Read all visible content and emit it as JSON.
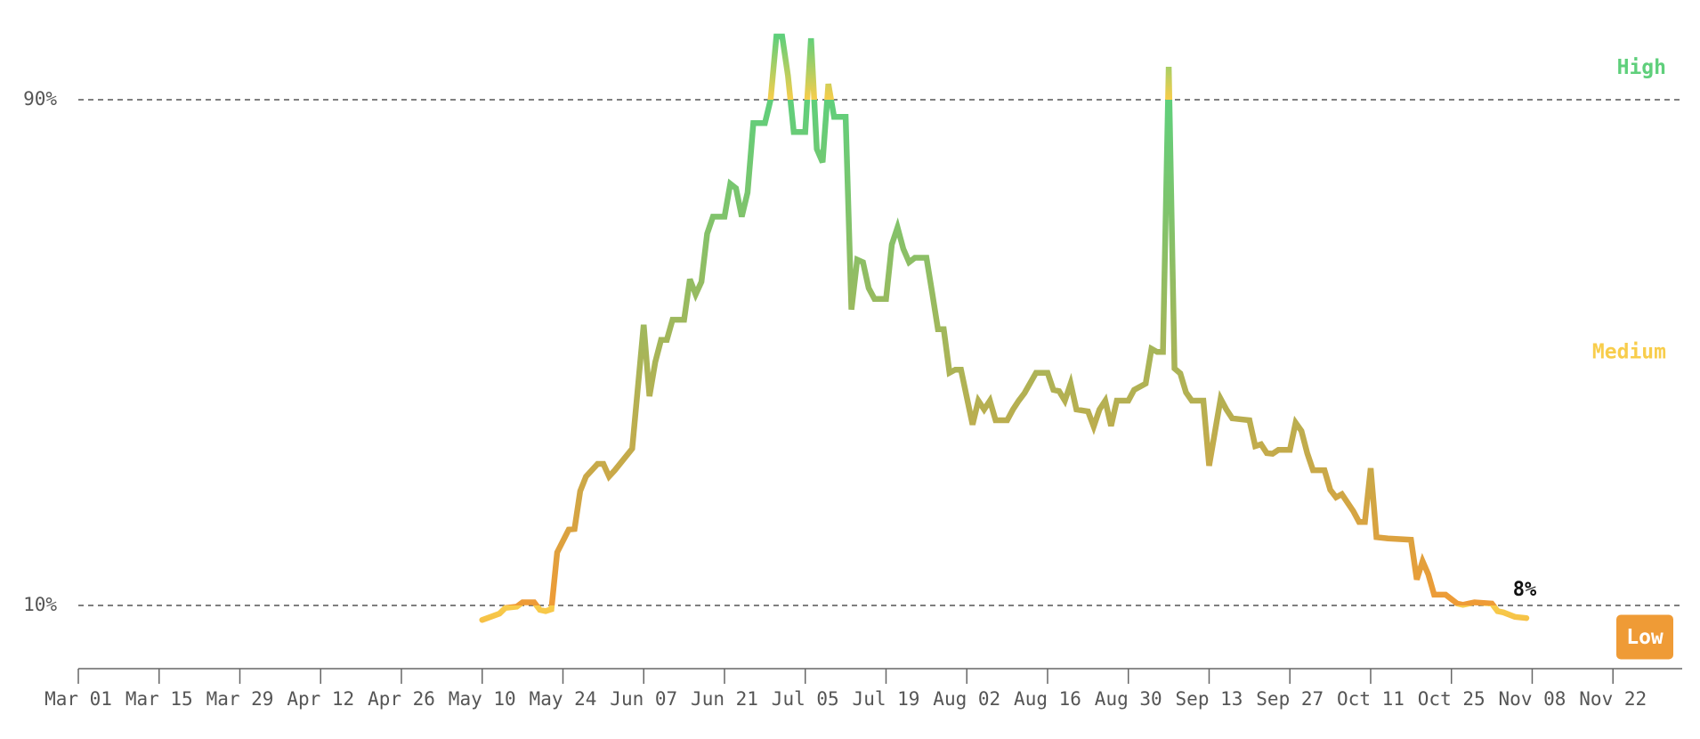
{
  "chart_data": {
    "type": "line",
    "x": [
      "May 10",
      "May 13",
      "May 14",
      "May 16",
      "May 17",
      "May 19",
      "May 20",
      "May 21",
      "May 22",
      "May 23",
      "May 25",
      "May 26",
      "May 27",
      "May 28",
      "May 30",
      "May 31",
      "Jun 01",
      "Jun 02",
      "Jun 05",
      "Jun 07",
      "Jun 08",
      "Jun 09",
      "Jun 10",
      "Jun 11",
      "Jun 12",
      "Jun 14",
      "Jun 15",
      "Jun 16",
      "Jun 17",
      "Jun 18",
      "Jun 19",
      "Jun 21",
      "Jun 22",
      "Jun 23",
      "Jun 24",
      "Jun 25",
      "Jun 26",
      "Jun 28",
      "Jun 29",
      "Jun 30",
      "Jul 01",
      "Jul 02",
      "Jul 03",
      "Jul 05",
      "Jul 06",
      "Jul 07",
      "Jul 08",
      "Jul 09",
      "Jul 10",
      "Jul 12",
      "Jul 13",
      "Jul 14",
      "Jul 15",
      "Jul 16",
      "Jul 17",
      "Jul 19",
      "Jul 20",
      "Jul 21",
      "Jul 22",
      "Jul 23",
      "Jul 24",
      "Jul 26",
      "Jul 27",
      "Jul 28",
      "Jul 29",
      "Jul 30",
      "Jul 31",
      "Aug 01",
      "Aug 03",
      "Aug 04",
      "Aug 05",
      "Aug 06",
      "Aug 07",
      "Aug 09",
      "Aug 10",
      "Aug 11",
      "Aug 12",
      "Aug 14",
      "Aug 16",
      "Aug 17",
      "Aug 18",
      "Aug 19",
      "Aug 20",
      "Aug 21",
      "Aug 23",
      "Aug 24",
      "Aug 25",
      "Aug 26",
      "Aug 27",
      "Aug 28",
      "Aug 30",
      "Aug 31",
      "Sep 02",
      "Sep 03",
      "Sep 04",
      "Sep 05",
      "Sep 06",
      "Sep 07",
      "Sep 08",
      "Sep 09",
      "Sep 10",
      "Sep 12",
      "Sep 13",
      "Sep 15",
      "Sep 16",
      "Sep 17",
      "Sep 20",
      "Sep 21",
      "Sep 22",
      "Sep 23",
      "Sep 24",
      "Sep 25",
      "Sep 27",
      "Sep 28",
      "Sep 29",
      "Sep 30",
      "Oct 01",
      "Oct 03",
      "Oct 04",
      "Oct 05",
      "Oct 06",
      "Oct 08",
      "Oct 09",
      "Oct 10",
      "Oct 11",
      "Oct 12",
      "Oct 14",
      "Oct 18",
      "Oct 19",
      "Oct 20",
      "Oct 21",
      "Oct 22",
      "Oct 24",
      "Oct 26",
      "Oct 27",
      "Oct 29",
      "Nov 01",
      "Nov 02",
      "Nov 03",
      "Nov 05",
      "Nov 07"
    ],
    "values": [
      7.7,
      8.7,
      9.6,
      9.8,
      10.5,
      10.5,
      9.3,
      9.1,
      9.4,
      18.4,
      22,
      22.1,
      28.1,
      30.4,
      32.4,
      32.4,
      30.4,
      31.4,
      34.8,
      54.4,
      43.1,
      48.5,
      52,
      52,
      55.2,
      55.2,
      61.6,
      59.2,
      61.2,
      68.8,
      71.5,
      71.5,
      76.7,
      76,
      71.5,
      75.3,
      86.3,
      86.3,
      90,
      100,
      100,
      93.8,
      84.9,
      84.9,
      99.7,
      82.2,
      80.1,
      92.5,
      87.3,
      87.3,
      56.8,
      64.7,
      64.3,
      60.2,
      58.5,
      58.5,
      67.1,
      69.8,
      66.4,
      64.3,
      65,
      65,
      59.5,
      53.7,
      53.7,
      46.8,
      47.3,
      47.3,
      38.6,
      42.4,
      41,
      42.4,
      39.3,
      39.3,
      41,
      42.4,
      43.6,
      46.8,
      46.8,
      44.1,
      43.9,
      42.4,
      45.1,
      41,
      40.7,
      38.3,
      41,
      42.4,
      38.4,
      42.4,
      42.4,
      44.1,
      45.1,
      50.6,
      50.1,
      50.1,
      95.2,
      47.5,
      46.7,
      43.7,
      42.4,
      42.4,
      32.1,
      42.7,
      41,
      39.6,
      39.3,
      35.2,
      35.5,
      34.1,
      34,
      34.6,
      34.6,
      38.9,
      37.6,
      34.1,
      31.4,
      31.4,
      28.3,
      27.1,
      27.6,
      24.9,
      23.2,
      23.2,
      31.7,
      20.8,
      20.6,
      20.4,
      14.1,
      17,
      14.9,
      11.7,
      11.7,
      10.3,
      10.1,
      10.5,
      10.3,
      9.1,
      8.9,
      8.2,
      8
    ],
    "end_label": "8%",
    "xlim": [
      "Mar 01",
      "Dec 04"
    ],
    "xticks": [
      "Mar 01",
      "Mar 15",
      "Mar 29",
      "Apr 12",
      "Apr 26",
      "May 10",
      "May 24",
      "Jun 07",
      "Jun 21",
      "Jul 05",
      "Jul 19",
      "Aug 02",
      "Aug 16",
      "Aug 30",
      "Sep 13",
      "Sep 27",
      "Oct 11",
      "Oct 25",
      "Nov 08",
      "Nov 22"
    ],
    "ylim": [
      0,
      100
    ],
    "yticks": [
      {
        "value": 10,
        "label": "10%"
      },
      {
        "value": 90,
        "label": "90%"
      }
    ],
    "grid": true,
    "bands": [
      {
        "name": "Low",
        "color": "#ef9b36"
      },
      {
        "name": "Medium",
        "color": "#f8cd4b"
      },
      {
        "name": "High",
        "color": "#5fcf7b"
      }
    ]
  }
}
